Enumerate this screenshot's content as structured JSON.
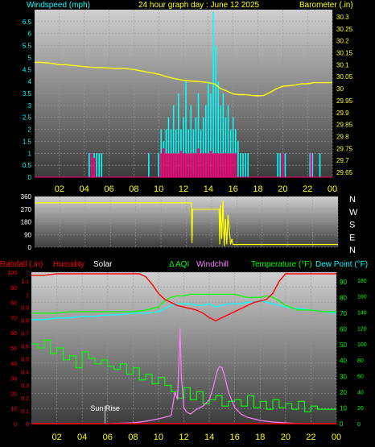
{
  "colors": {
    "bg": "#000000",
    "plot_bg_top": "#c8c8c8",
    "plot_bg_bottom": "#505050",
    "grid": "#a0a0a0",
    "wind": "#00ffff",
    "gust": "#ff0080",
    "barometer": "#ffff00",
    "direction": "#ffff00",
    "rain": "#ff0000",
    "humidity": "#ff0000",
    "solar": "#ffffff",
    "aqi": "#00ff00",
    "windchill": "#ff80ff",
    "temperature": "#00ff00",
    "dewpoint": "#00ffff",
    "hour_labels": "#ffff00",
    "left_axis_wind": "#00ffff",
    "right_axis_baro": "#ffff00"
  },
  "chart_data": [
    {
      "type": "line",
      "title": "24 hour graph day : June 12 2025",
      "left_label": "Windspeed (mph)",
      "right_label": "Barometer (.in)",
      "x_ticks": [
        "02",
        "04",
        "06",
        "08",
        "10",
        "12",
        "14",
        "16",
        "18",
        "20",
        "22",
        "00"
      ],
      "y_left_ticks": [
        "0",
        "0.5",
        "1",
        "1.5",
        "2",
        "2.5",
        "3",
        "3.5",
        "4",
        "4.5",
        "5",
        "5.5",
        "6",
        "6.5"
      ],
      "y_right_ticks": [
        "29.65",
        "29.7",
        "29.75",
        "29.8",
        "29.85",
        "29.9",
        "29.95",
        "30",
        "30.05",
        "30.1",
        "30.15",
        "30.2",
        "30.25",
        "30.3"
      ],
      "ylim_left": [
        0,
        7
      ],
      "ylim_right": [
        29.63,
        30.33
      ],
      "xlim": [
        0,
        24
      ],
      "barometer": {
        "x": [
          0,
          0.5,
          1,
          1.5,
          2,
          2.5,
          3,
          3.5,
          4,
          4.5,
          5,
          5.5,
          6,
          6.5,
          7,
          7.5,
          8,
          8.5,
          9,
          9.5,
          10,
          10.5,
          11,
          11.5,
          12,
          12.5,
          13,
          13.5,
          14,
          14.5,
          15,
          15.5,
          16,
          16.5,
          17,
          17.5,
          18,
          18.5,
          19,
          19.5,
          20,
          20.5,
          21,
          21.5,
          22,
          22.5,
          23,
          23.5,
          24
        ],
        "values": [
          30.11,
          30.11,
          30.108,
          30.105,
          30.1,
          30.1,
          30.097,
          30.095,
          30.092,
          30.09,
          30.088,
          30.088,
          30.086,
          30.085,
          30.085,
          30.083,
          30.08,
          30.075,
          30.07,
          30.065,
          30.06,
          30.052,
          30.045,
          30.04,
          30.035,
          30.032,
          30.03,
          30.028,
          30.025,
          30.02,
          30.0,
          29.99,
          29.978,
          29.975,
          29.975,
          29.972,
          29.97,
          29.972,
          29.985,
          30.0,
          30.01,
          30.012,
          30.015,
          30.02,
          30.02,
          30.025,
          30.025,
          30.025,
          30.025
        ]
      },
      "windspeed_spikes": {
        "x": [
          4.4,
          4.6,
          4.8,
          5.0,
          5.2,
          5.4,
          9.2,
          10.0,
          10.2,
          10.4,
          10.6,
          10.8,
          11.0,
          11.2,
          11.4,
          11.6,
          11.8,
          12.0,
          12.2,
          12.4,
          12.6,
          12.8,
          13.0,
          13.2,
          13.4,
          13.6,
          13.8,
          14.0,
          14.2,
          14.4,
          14.6,
          14.8,
          15.0,
          15.2,
          15.4,
          15.6,
          15.8,
          16.0,
          16.2,
          16.4,
          16.6,
          16.8,
          17.0,
          17.2,
          19.6,
          19.8,
          20.0,
          20.2,
          22.2,
          22.4,
          23.0
        ],
        "values": [
          1,
          1,
          1,
          1,
          1,
          1,
          1,
          1,
          2,
          1.5,
          2,
          2.5,
          2,
          3,
          2,
          3.5,
          2,
          2.5,
          4,
          2,
          3,
          2,
          2.5,
          3.5,
          2,
          2.5,
          3,
          4,
          3.5,
          6.9,
          5.5,
          4,
          3,
          3.5,
          2.5,
          3,
          2,
          2.5,
          2,
          1.5,
          1,
          1,
          1,
          1,
          1,
          1,
          1,
          1,
          1,
          1,
          1
        ]
      },
      "gust_spikes": {
        "x": [
          4.6,
          4.8,
          10.2,
          10.4,
          10.6,
          10.8,
          11.0,
          11.2,
          11.4,
          11.6,
          11.8,
          12.0,
          12.2,
          12.4,
          12.6,
          12.8,
          13.0,
          13.2,
          13.4,
          13.6,
          13.8,
          14.0,
          14.2,
          14.4,
          14.6,
          14.8,
          15.0,
          15.2,
          15.4,
          15.6,
          15.8,
          16.0,
          16.2,
          20.0,
          22.3
        ],
        "values": [
          1,
          0.8,
          1,
          1.2,
          1,
          1,
          1,
          1,
          1,
          1,
          1.1,
          1,
          1,
          1,
          1,
          1,
          1,
          1.2,
          1,
          1,
          1,
          1,
          1.1,
          1,
          1,
          1,
          1,
          1,
          1,
          1,
          1,
          1,
          1,
          1,
          1
        ]
      }
    },
    {
      "type": "line",
      "title": "",
      "x_ticks": [],
      "y_left_ticks": [
        "0",
        "90",
        "180",
        "270",
        "360"
      ],
      "ylim": [
        0,
        360
      ],
      "xlim": [
        0,
        24
      ],
      "direction_labels": [
        "N",
        "W",
        "S",
        "E",
        "N"
      ],
      "direction": {
        "x": [
          0,
          12.4,
          12.45,
          12.5,
          12.55,
          14.6,
          14.65,
          14.7,
          14.8,
          14.9,
          15.0,
          15.1,
          15.2,
          15.3,
          15.5,
          15.6,
          15.7,
          15.8,
          16,
          24
        ],
        "values": [
          315,
          315,
          30,
          270,
          270,
          270,
          20,
          300,
          60,
          330,
          10,
          200,
          20,
          230,
          20,
          60,
          20,
          20,
          20,
          20
        ]
      }
    },
    {
      "type": "line",
      "title": "",
      "labels": [
        "Rainfall (.in)",
        "Humidity",
        "Solar",
        "AQI",
        "Windchill",
        "Temperature (°F)",
        "Dew Point (°F)"
      ],
      "x_ticks": [
        "02",
        "04",
        "06",
        "08",
        "10",
        "12",
        "14",
        "16",
        "18",
        "20",
        "22",
        "00"
      ],
      "y_rain_ticks": [
        "0",
        "0.1",
        "0.2",
        "0.3",
        "0.4",
        "0.5",
        "0.6",
        "0.7",
        "0.8",
        "0.9",
        "1",
        "1.1"
      ],
      "y_humidity_ticks": [
        "0",
        "10",
        "20",
        "30",
        "40",
        "50",
        "60",
        "70",
        "80",
        "90",
        "100"
      ],
      "y_temp_ticks": [
        "0",
        "10",
        "20",
        "30",
        "40",
        "50",
        "60",
        "70",
        "80",
        "90"
      ],
      "y_aqi_ticks": [
        "0",
        "20",
        "40",
        "60",
        "80",
        "100",
        "120",
        "140",
        "160",
        "180"
      ],
      "annotation": "Sun Rise",
      "xlim": [
        0,
        24
      ],
      "humidity": {
        "x": [
          0,
          1,
          2,
          3,
          4,
          5,
          6,
          7,
          8,
          8.5,
          9,
          9.5,
          10,
          10.5,
          11,
          11.5,
          12,
          12.5,
          13,
          13.5,
          14,
          14.5,
          15,
          15.5,
          16,
          16.5,
          17,
          17.5,
          18,
          18.5,
          19,
          19.5,
          20,
          21,
          22,
          23,
          24
        ],
        "values": [
          98,
          98,
          99,
          99,
          99,
          99,
          99,
          99,
          99,
          99,
          97,
          92,
          86,
          82,
          80,
          78,
          77,
          76,
          75,
          73,
          70,
          68,
          70,
          72,
          74,
          76,
          78,
          80,
          81,
          82,
          86,
          94,
          99,
          99,
          99,
          99,
          99
        ]
      },
      "temperature": {
        "x": [
          0,
          1,
          2,
          3,
          4,
          5,
          6,
          7,
          8,
          9,
          10,
          10.5,
          11,
          11.5,
          12,
          12.5,
          13,
          13.5,
          14,
          14.5,
          15,
          15.5,
          16,
          16.5,
          17,
          17.5,
          18,
          18.5,
          19,
          19.5,
          20,
          21,
          22,
          23,
          24
        ],
        "values": [
          70,
          70,
          70,
          71,
          71,
          71,
          71,
          71,
          71,
          72,
          74,
          78,
          80,
          81,
          81,
          82,
          82,
          82,
          82,
          82,
          82,
          82,
          82,
          81,
          80,
          80,
          80,
          81,
          80,
          78,
          75,
          72,
          72,
          71,
          71
        ]
      },
      "dewpoint": {
        "x": [
          0,
          1,
          2,
          3,
          4,
          5,
          6,
          7,
          8,
          9,
          10,
          10.5,
          11,
          11.5,
          12,
          12.5,
          13,
          13.5,
          14,
          14.5,
          15,
          15.5,
          16,
          16.5,
          17,
          17.5,
          18,
          18.5,
          19,
          19.5,
          20,
          21,
          22,
          23,
          24
        ],
        "values": [
          66,
          66,
          67,
          67,
          68,
          68,
          69,
          69,
          70,
          70,
          71,
          73,
          75,
          76,
          76,
          76,
          75,
          75,
          76,
          74,
          75,
          76,
          76,
          76,
          77,
          77,
          78,
          77,
          76,
          75,
          74,
          73,
          72,
          71,
          70
        ]
      },
      "aqi": {
        "x": [
          0,
          0.5,
          1,
          1.5,
          2,
          2.5,
          3,
          3.5,
          4,
          4.5,
          5,
          5.5,
          6,
          6.5,
          7,
          7.5,
          8,
          8.5,
          9,
          9.5,
          10,
          10.5,
          11,
          11.5,
          12,
          12.5,
          13,
          13.5,
          14,
          14.5,
          15,
          15.5,
          16,
          16.5,
          17,
          17.5,
          18,
          18.5,
          19,
          19.5,
          20,
          20.5,
          21,
          21.5,
          22,
          22.5,
          23,
          23.5,
          24
        ],
        "values": [
          100,
          95,
          105,
          88,
          95,
          80,
          85,
          70,
          90,
          82,
          75,
          80,
          72,
          68,
          75,
          62,
          70,
          55,
          62,
          50,
          58,
          48,
          40,
          32,
          45,
          30,
          40,
          25,
          30,
          35,
          22,
          28,
          30,
          22,
          35,
          20,
          28,
          18,
          30,
          20,
          25,
          18,
          28,
          15,
          22,
          18,
          18,
          18,
          18
        ]
      },
      "windchill": {
        "x": [
          0,
          4,
          6,
          8,
          9,
          10,
          10.5,
          11,
          11.3,
          11.5,
          11.7,
          11.8,
          12,
          12.2,
          12.5,
          13,
          13.5,
          14,
          14.3,
          14.6,
          14.8,
          15,
          15.2,
          15.5,
          16,
          16.5,
          17,
          18,
          19,
          20,
          21,
          22,
          24
        ],
        "values": [
          0,
          0,
          0,
          1,
          3,
          6,
          8,
          10,
          40,
          30,
          120,
          60,
          20,
          15,
          12,
          18,
          22,
          30,
          45,
          65,
          72,
          70,
          60,
          40,
          20,
          12,
          8,
          4,
          2,
          1,
          0,
          0,
          0
        ]
      },
      "solar": {
        "x": [
          0,
          5.8,
          6,
          8,
          10,
          12,
          14,
          16,
          18,
          20,
          22,
          24
        ],
        "values": [
          0,
          0,
          0,
          0,
          0,
          0,
          0,
          0,
          0,
          0,
          0,
          0
        ]
      },
      "rain": {
        "x": [
          0,
          24
        ],
        "values": [
          0,
          0
        ]
      }
    }
  ],
  "top_header": {
    "left": "Windspeed (mph)",
    "center": "24 hour graph day : June 12 2025",
    "right": "Barometer (.in)"
  },
  "bottom_header": {
    "rainfall": "Rainfall (.in)",
    "humidity": "Humidity",
    "solar": "Solar",
    "aqi": "AQI",
    "windchill": "Windchill",
    "temperature": "Temperature (°F)",
    "dewpoint": "Dew Point (°F)"
  }
}
